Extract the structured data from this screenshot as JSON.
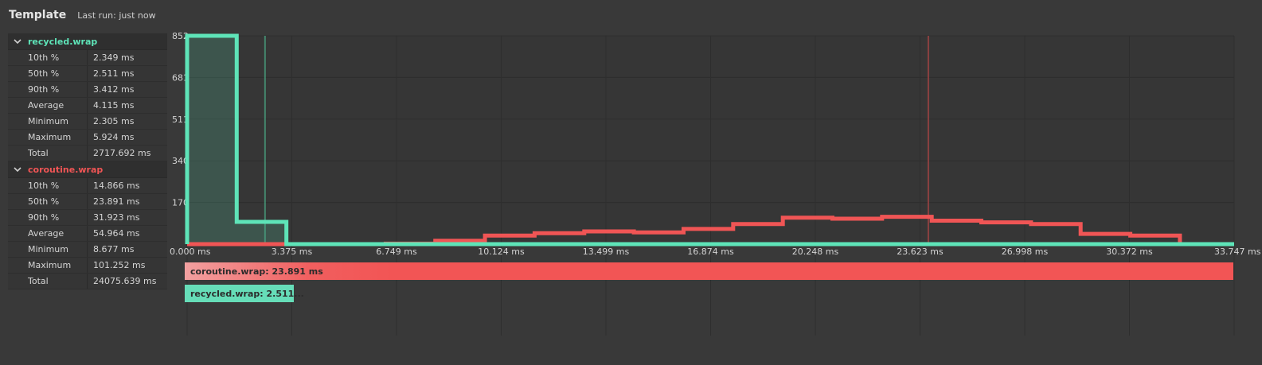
{
  "header": {
    "title": "Template",
    "last_run": "Last run: just now"
  },
  "colors": {
    "green": "#5ee4b8",
    "red": "#f05555",
    "background": "#393939"
  },
  "groups": [
    {
      "name": "recycled.wrap",
      "color": "#5ee4b8",
      "icon": "chevron-down-icon",
      "stats": [
        {
          "label": "10th %",
          "value": "2.349 ms"
        },
        {
          "label": "50th %",
          "value": "2.511 ms"
        },
        {
          "label": "90th %",
          "value": "3.412 ms"
        },
        {
          "label": "Average",
          "value": "4.115 ms"
        },
        {
          "label": "Minimum",
          "value": "2.305 ms"
        },
        {
          "label": "Maximum",
          "value": "5.924 ms"
        },
        {
          "label": "Total",
          "value": "2717.692 ms"
        }
      ]
    },
    {
      "name": "coroutine.wrap",
      "color": "#f05555",
      "icon": "chevron-down-icon",
      "stats": [
        {
          "label": "10th %",
          "value": "14.866 ms"
        },
        {
          "label": "50th %",
          "value": "23.891 ms"
        },
        {
          "label": "90th %",
          "value": "31.923 ms"
        },
        {
          "label": "Average",
          "value": "54.964 ms"
        },
        {
          "label": "Minimum",
          "value": "8.677 ms"
        },
        {
          "label": "Maximum",
          "value": "101.252 ms"
        },
        {
          "label": "Total",
          "value": "24075.639 ms"
        }
      ]
    }
  ],
  "chart_data": {
    "type": "line",
    "step": true,
    "grid": true,
    "x_tick_labels": [
      "0.000 ms",
      "3.375 ms",
      "6.749 ms",
      "10.124 ms",
      "13.499 ms",
      "16.874 ms",
      "20.248 ms",
      "23.623 ms",
      "26.998 ms",
      "30.372 ms",
      "33.747 ms"
    ],
    "y_tick_labels": [
      "852",
      "681",
      "511",
      "340",
      "170"
    ],
    "xlim": [
      0,
      33.747
    ],
    "ylim": [
      0,
      852
    ],
    "bin_edges": [
      0,
      1.6,
      3.2,
      4.8,
      6.4,
      8.0,
      9.6,
      11.2,
      12.8,
      14.4,
      16.0,
      17.6,
      19.2,
      20.8,
      22.4,
      24.0,
      25.6,
      27.2,
      28.8,
      30.4,
      32.0,
      33.747
    ],
    "series": [
      {
        "color": "#5ee4b8",
        "fill": true,
        "values": [
          852,
          91,
          0,
          0,
          0,
          0,
          0,
          0,
          0,
          0,
          0,
          0,
          0,
          0,
          0,
          0,
          0,
          0,
          0,
          0,
          0
        ],
        "marker_x": 2.511
      },
      {
        "color": "#f05555",
        "fill": false,
        "values": [
          0,
          0,
          0,
          0,
          2,
          14,
          35,
          45,
          52,
          48,
          62,
          82,
          108,
          104,
          112,
          96,
          89,
          82,
          42,
          35,
          0
        ],
        "marker_x": 23.891
      }
    ]
  },
  "bars": {
    "red_label": "coroutine.wrap: 23.891 ms",
    "green_label": "recycled.wrap: 2.511..."
  }
}
